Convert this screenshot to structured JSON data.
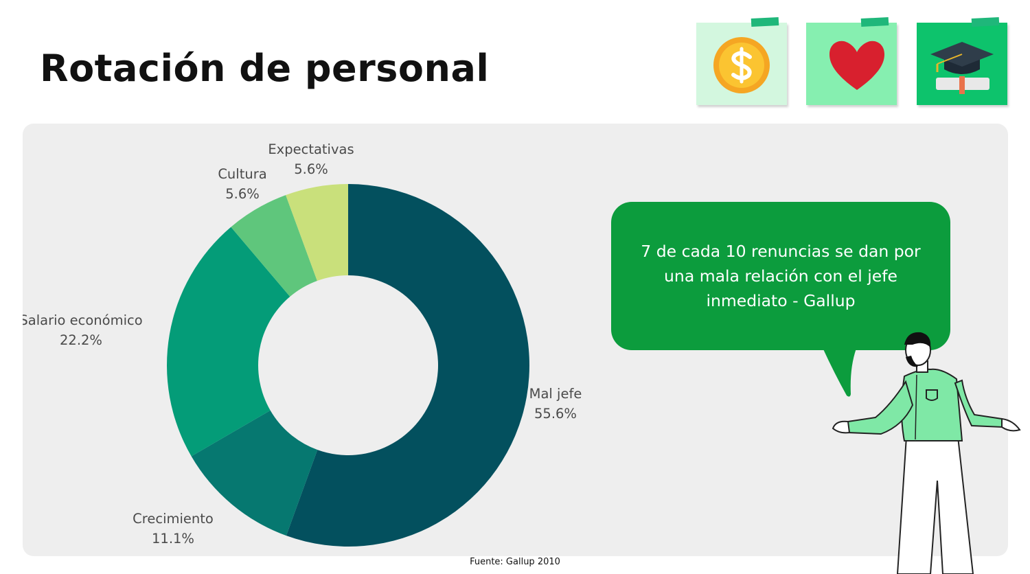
{
  "title": "Rotación de personal",
  "icons": [
    "dollar-coin-icon",
    "heart-icon",
    "graduation-cap-icon"
  ],
  "colors": {
    "mal_jefe": "#03505e",
    "crecimiento": "#067870",
    "salario": "#049c78",
    "cultura": "#5fc67c",
    "expectativas": "#c9e07b",
    "bubble": "#0c9c3d"
  },
  "callout": "7 de cada 10 renuncias se dan por una mala relación con el jefe inmediato - Gallup",
  "source": "Fuente: Gallup 2010",
  "chart_data": {
    "type": "pie",
    "variant": "donut",
    "labels": [
      "Mal jefe",
      "Crecimiento",
      "Salario económico",
      "Cultura",
      "Expectativas"
    ],
    "values": [
      55.6,
      11.1,
      22.2,
      5.6,
      5.6
    ],
    "value_labels": [
      "55.6%",
      "11.1%",
      "22.2%",
      "5.6%",
      "5.6%"
    ],
    "start": "top, clockwise"
  }
}
